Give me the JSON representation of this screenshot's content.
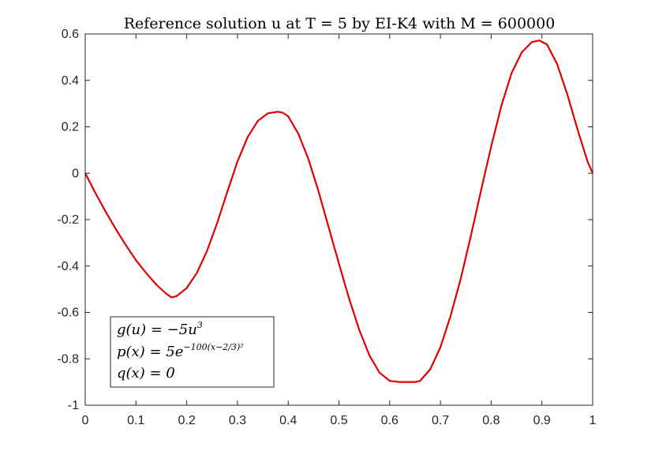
{
  "chart_data": {
    "type": "line",
    "title": "Reference solution u at T = 5 by EI-K4 with M = 600000",
    "xlabel": "",
    "ylabel": "",
    "xlim": [
      0,
      1
    ],
    "ylim": [
      -1,
      0.6
    ],
    "grid": false,
    "line_color": "#e00000",
    "x_ticks": [
      "0",
      "0.1",
      "0.2",
      "0.3",
      "0.4",
      "0.5",
      "0.6",
      "0.7",
      "0.8",
      "0.9",
      "1"
    ],
    "y_ticks": [
      "0.6",
      "0.4",
      "0.2",
      "0",
      "-0.2",
      "-0.4",
      "-0.6",
      "-0.8",
      "-1"
    ],
    "series": [
      {
        "x": [
          0,
          0.02,
          0.04,
          0.06,
          0.08,
          0.1,
          0.12,
          0.14,
          0.16,
          0.17,
          0.18,
          0.2,
          0.22,
          0.24,
          0.26,
          0.28,
          0.3,
          0.32,
          0.34,
          0.36,
          0.38,
          0.39,
          0.4,
          0.42,
          0.44,
          0.46,
          0.48,
          0.5,
          0.52,
          0.54,
          0.56,
          0.58,
          0.6,
          0.62,
          0.64,
          0.65,
          0.66,
          0.68,
          0.7,
          0.72,
          0.74,
          0.76,
          0.78,
          0.8,
          0.82,
          0.84,
          0.86,
          0.88,
          0.895,
          0.91,
          0.93,
          0.95,
          0.97,
          0.99,
          1.0
        ],
        "values": [
          0,
          -0.085,
          -0.165,
          -0.24,
          -0.31,
          -0.375,
          -0.43,
          -0.48,
          -0.52,
          -0.535,
          -0.53,
          -0.495,
          -0.43,
          -0.335,
          -0.215,
          -0.08,
          0.05,
          0.155,
          0.225,
          0.258,
          0.265,
          0.26,
          0.245,
          0.17,
          0.06,
          -0.08,
          -0.235,
          -0.39,
          -0.54,
          -0.675,
          -0.785,
          -0.86,
          -0.895,
          -0.9,
          -0.9,
          -0.9,
          -0.895,
          -0.845,
          -0.75,
          -0.615,
          -0.455,
          -0.27,
          -0.075,
          0.115,
          0.29,
          0.43,
          0.52,
          0.565,
          0.572,
          0.555,
          0.47,
          0.34,
          0.19,
          0.05,
          0
        ]
      }
    ]
  },
  "legend": {
    "line1": "g(u) = −5u",
    "line1_sup": "3",
    "line2": "p(x) = 5e",
    "line2_sup": "−100(x−2/3)²",
    "line3": "q(x) = 0"
  }
}
